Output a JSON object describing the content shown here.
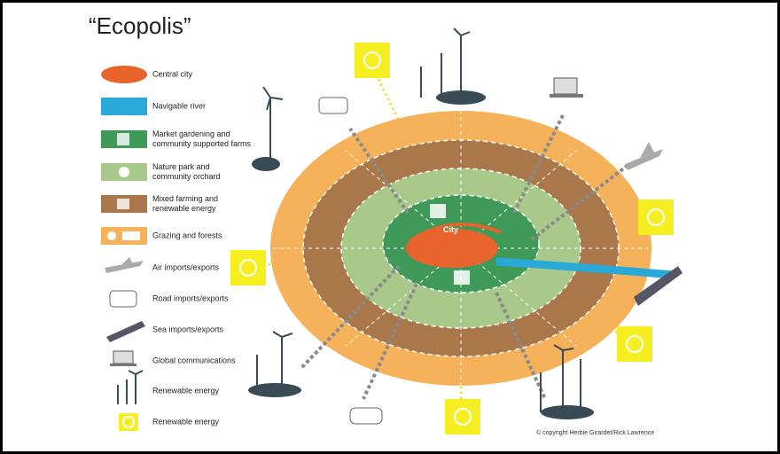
{
  "header": {
    "title": "“Ecopolis”"
  },
  "legend": [
    {
      "lines": [
        "Central city"
      ]
    },
    {
      "lines": [
        "Navigable river"
      ]
    },
    {
      "lines": [
        "Market gardening and",
        "community supported farms"
      ]
    },
    {
      "lines": [
        "Nature park and",
        "community orchard"
      ]
    },
    {
      "lines": [
        "Mixed farming and",
        "renewable energy"
      ]
    },
    {
      "lines": [
        "Grazing and forests"
      ]
    },
    {
      "lines": [
        "Air imports/exports"
      ]
    },
    {
      "lines": [
        "Road imports/exports"
      ]
    },
    {
      "lines": [
        "Sea imports/exports"
      ]
    },
    {
      "lines": [
        "Global communications"
      ]
    },
    {
      "lines": [
        "Renewable energy"
      ]
    },
    {
      "lines": [
        "Renewable energy"
      ]
    }
  ],
  "diagram": {
    "center_label": "City"
  },
  "footer": {
    "copyright": "© copyright Herbie Girardet/Rick Lawrence"
  }
}
